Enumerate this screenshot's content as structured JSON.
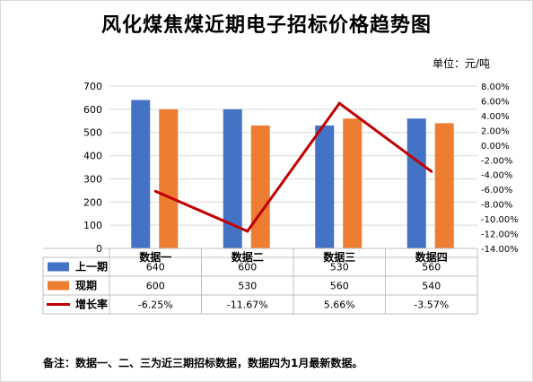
{
  "title": "风化煤焦煤近期电子招标价格趋势图",
  "unit": "单位：元/吨",
  "note": "备注：数据一、二、三为近三期招标数据，数据四为1月最新数据。",
  "colors": {
    "prev": "#4472c4",
    "curr": "#ed7d31",
    "growth": "#c00000",
    "grid": "#d9d9d9",
    "border": "#bfbfbf"
  },
  "chart_data": {
    "type": "bar",
    "categories": [
      "数据一",
      "数据二",
      "数据三",
      "数据四"
    ],
    "series": [
      {
        "name": "上一期",
        "type": "bar",
        "axis": "left",
        "values": [
          640,
          600,
          530,
          560
        ],
        "labels": [
          "640",
          "600",
          "530",
          "560"
        ]
      },
      {
        "name": "现期",
        "type": "bar",
        "axis": "left",
        "values": [
          600,
          530,
          560,
          540
        ],
        "labels": [
          "600",
          "530",
          "560",
          "540"
        ]
      },
      {
        "name": "增长率",
        "type": "line",
        "axis": "right",
        "values": [
          -6.25,
          -11.67,
          5.66,
          -3.57
        ],
        "labels": [
          "-6.25%",
          "-11.67%",
          "5.66%",
          "-3.57%"
        ]
      }
    ],
    "y_left": {
      "min": 0,
      "max": 700,
      "step": 100,
      "ticks": [
        "0",
        "100",
        "200",
        "300",
        "400",
        "500",
        "600",
        "700"
      ]
    },
    "y_right": {
      "min": -14,
      "max": 8,
      "step": 2,
      "ticks": [
        "8.00%",
        "6.00%",
        "4.00%",
        "2.00%",
        "0.00%",
        "-2.00%",
        "-4.00%",
        "-6.00%",
        "-8.00%",
        "-10.00%",
        "-12.00%",
        "-14.00%"
      ]
    },
    "grid": true,
    "legend": "data-table-left"
  }
}
